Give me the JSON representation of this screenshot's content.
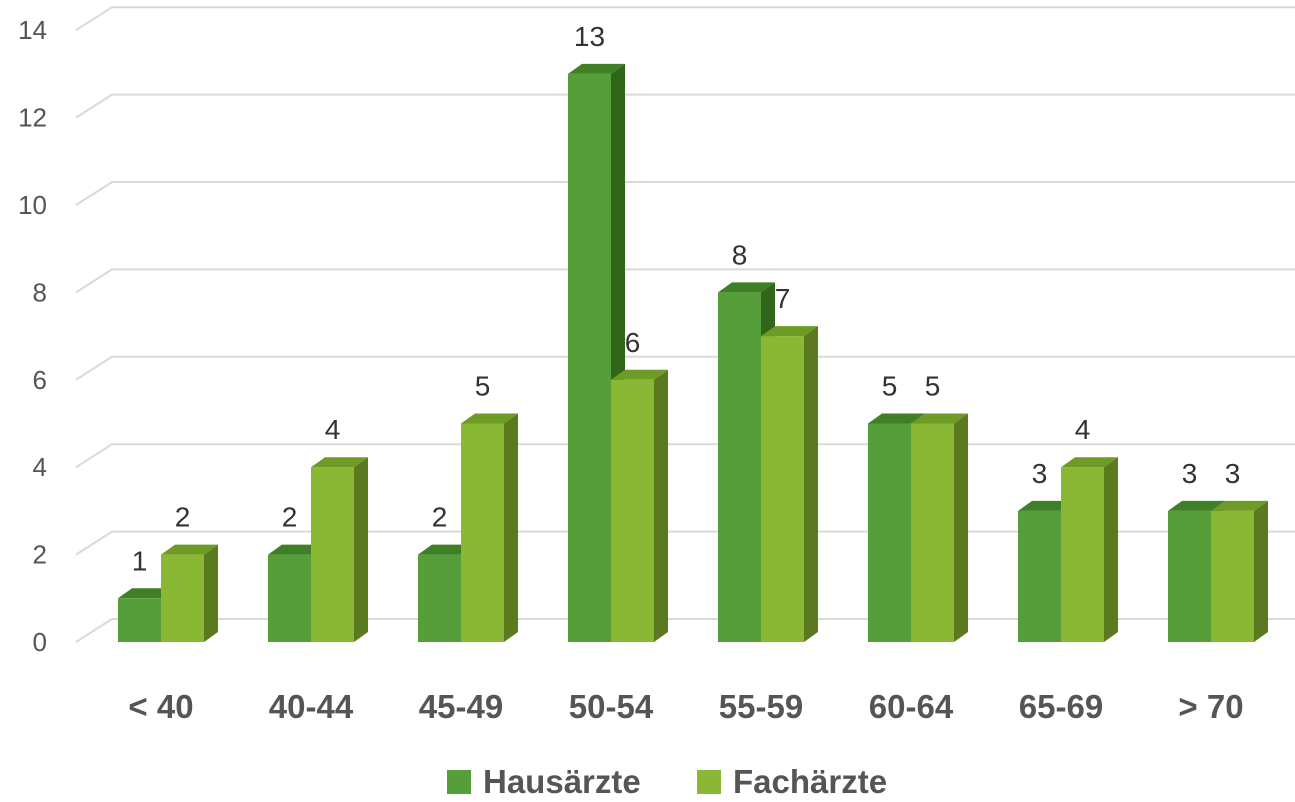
{
  "chart_data": {
    "type": "bar",
    "title": "",
    "xlabel": "",
    "ylabel": "",
    "categories": [
      "< 40",
      "40-44",
      "45-49",
      "50-54",
      "55-59",
      "60-64",
      "65-69",
      "> 70"
    ],
    "series": [
      {
        "name": "Hausärzte",
        "values": [
          1,
          2,
          2,
          13,
          8,
          5,
          3,
          3
        ]
      },
      {
        "name": "Fachärzte",
        "values": [
          2,
          4,
          5,
          6,
          7,
          5,
          4,
          3
        ]
      }
    ],
    "ylim": [
      0,
      14
    ],
    "yticks": [
      0,
      2,
      4,
      6,
      8,
      10,
      12,
      14
    ],
    "grid": true,
    "legend_position": "bottom",
    "style": "3d-clustered-column",
    "colors": {
      "Hausärzte": {
        "front": "#559e3a",
        "side": "#2f6619",
        "top": "#3f7f26"
      },
      "Fachärzte": {
        "front": "#8ab734",
        "side": "#5b7a1f",
        "top": "#6e9a26"
      },
      "grid": "#d9d9d9"
    }
  }
}
